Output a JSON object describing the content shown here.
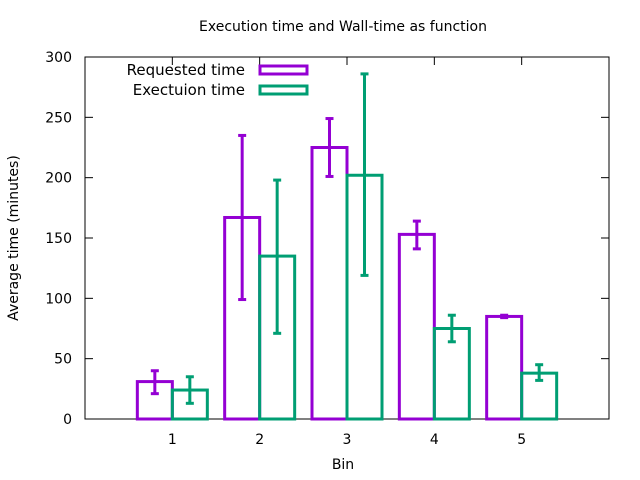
{
  "chart_data": {
    "type": "bar",
    "title": "Execution time and Wall-time as function",
    "xlabel": "Bin",
    "ylabel": "Average time (minutes)",
    "categories": [
      "1",
      "2",
      "3",
      "4",
      "5"
    ],
    "ylim": [
      0,
      300
    ],
    "yticks": [
      0,
      50,
      100,
      150,
      200,
      250,
      300
    ],
    "grid": false,
    "legend_position": "top-left",
    "series": [
      {
        "name": "Requested time",
        "color": "#9400d3",
        "values": [
          31,
          167,
          225,
          153,
          85
        ],
        "error_low": [
          21,
          99,
          201,
          141,
          84
        ],
        "error_high": [
          40,
          235,
          249,
          164,
          86
        ]
      },
      {
        "name": "Exectuion time",
        "color": "#009e73",
        "values": [
          24,
          135,
          202,
          75,
          38
        ],
        "error_low": [
          13,
          71,
          119,
          64,
          32
        ],
        "error_high": [
          35,
          198,
          286,
          86,
          45
        ]
      }
    ]
  }
}
